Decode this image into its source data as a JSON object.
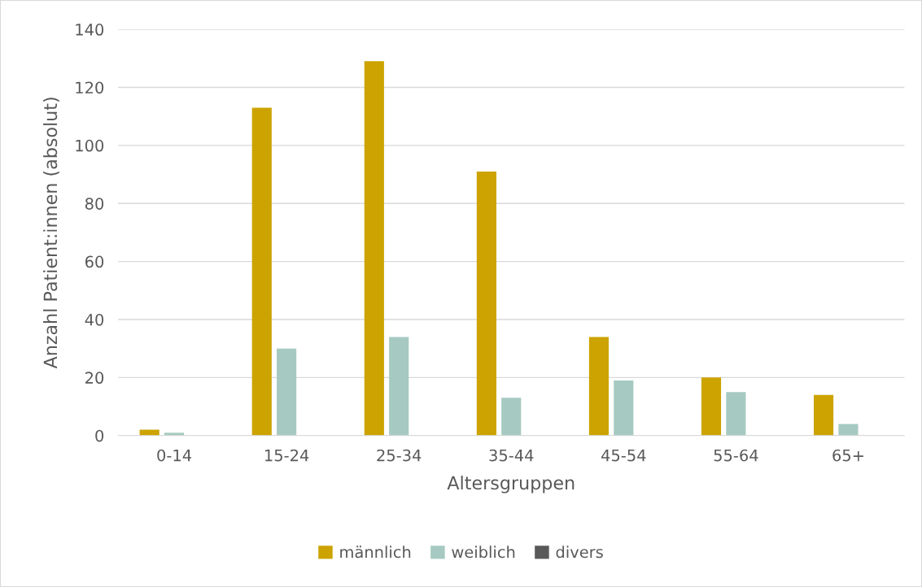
{
  "chart_data": {
    "type": "bar",
    "xlabel": "Altersgruppen",
    "ylabel": "Anzahl Patient:innen (absolut)",
    "categories": [
      "0-14",
      "15-24",
      "25-34",
      "35-44",
      "45-54",
      "55-64",
      "65+"
    ],
    "series": [
      {
        "name": "männlich",
        "color": "#cca300",
        "values": [
          2,
          113,
          129,
          91,
          34,
          20,
          14
        ]
      },
      {
        "name": "weiblich",
        "color": "#a6cac1",
        "values": [
          1,
          30,
          34,
          13,
          19,
          15,
          4
        ]
      },
      {
        "name": "divers",
        "color": "#595959",
        "values": [
          0,
          0,
          0,
          0,
          0,
          0,
          0
        ]
      }
    ],
    "ylim": [
      0,
      140
    ],
    "yticks": [
      0,
      20,
      40,
      60,
      80,
      100,
      120,
      140
    ],
    "grid": "y",
    "legend": "bottom"
  }
}
